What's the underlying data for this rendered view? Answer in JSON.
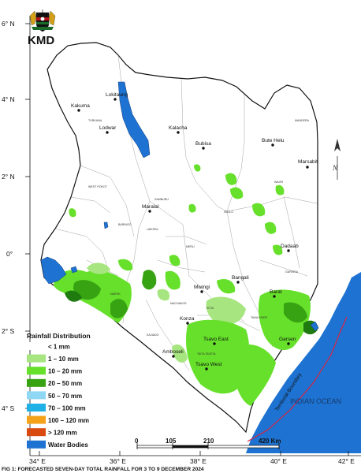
{
  "logo": {
    "text": "KMD",
    "colors": {
      "black": "#111111",
      "red": "#b3121a",
      "green": "#1b6b2a",
      "gold": "#d4a017"
    }
  },
  "lat_labels": [
    "6° N",
    "4° N",
    "2° N",
    "0°",
    "2° S",
    "4° S"
  ],
  "lon_labels": [
    "34° E",
    "36° E",
    "38° E",
    "40° E",
    "42° E"
  ],
  "towns": [
    {
      "name": "Kakuma"
    },
    {
      "name": "Lokitaung"
    },
    {
      "name": "Lodwar"
    },
    {
      "name": "Kalacha"
    },
    {
      "name": "Bubisa"
    },
    {
      "name": "Bute Helu"
    },
    {
      "name": "Marsabit"
    },
    {
      "name": "Maralal"
    },
    {
      "name": "Dadaab"
    },
    {
      "name": "Bangali"
    },
    {
      "name": "Mwingi"
    },
    {
      "name": "Barat"
    },
    {
      "name": "Konza"
    },
    {
      "name": "Tsavo East"
    },
    {
      "name": "Garsen"
    },
    {
      "name": "Amboseli"
    },
    {
      "name": "Tsavo West"
    }
  ],
  "county_labels": [
    "TURKANA",
    "MANDERA",
    "WEST POKOT",
    "SAMBURU",
    "ISIOLO",
    "WAJIR",
    "BARINGO",
    "LAIKIPIA",
    "MERU",
    "GARISSA",
    "KITUI",
    "MACHAKOS",
    "NAROK",
    "KAJIADO",
    "TANA RIVER",
    "TAITA TAVETA"
  ],
  "ocean": {
    "label": "INDIAN OCEAN",
    "color": "#1e73d2"
  },
  "boundary": {
    "label": "Territorial Boundary",
    "color": "#e0203a"
  },
  "scale_bar": {
    "ticks": [
      "0",
      "105",
      "210",
      "420 Km"
    ]
  },
  "legend": {
    "title": "Rainfall Distribution",
    "items": [
      {
        "label": "< 1 mm",
        "color": "#ffffff"
      },
      {
        "label": "1 – 10 mm",
        "color": "#a6e57f"
      },
      {
        "label": "10 – 20 mm",
        "color": "#66e02a"
      },
      {
        "label": "20 – 50 mm",
        "color": "#37a313"
      },
      {
        "label": "50 – 70 mm",
        "color": "#8fd8f3"
      },
      {
        "label": "70 – 100 mm",
        "color": "#1fb0e6"
      },
      {
        "label": "100 – 120 mm",
        "color": "#f5a21b"
      },
      {
        "label": "> 120 mm",
        "color": "#d84a10"
      },
      {
        "label": "Water Bodies",
        "color": "#1e73d2"
      }
    ]
  },
  "caption": "FIG 1: FORECASTED SEVEN-DAY TOTAL RAINFALL FOR 3 TO 9 DECEMBER 2024"
}
